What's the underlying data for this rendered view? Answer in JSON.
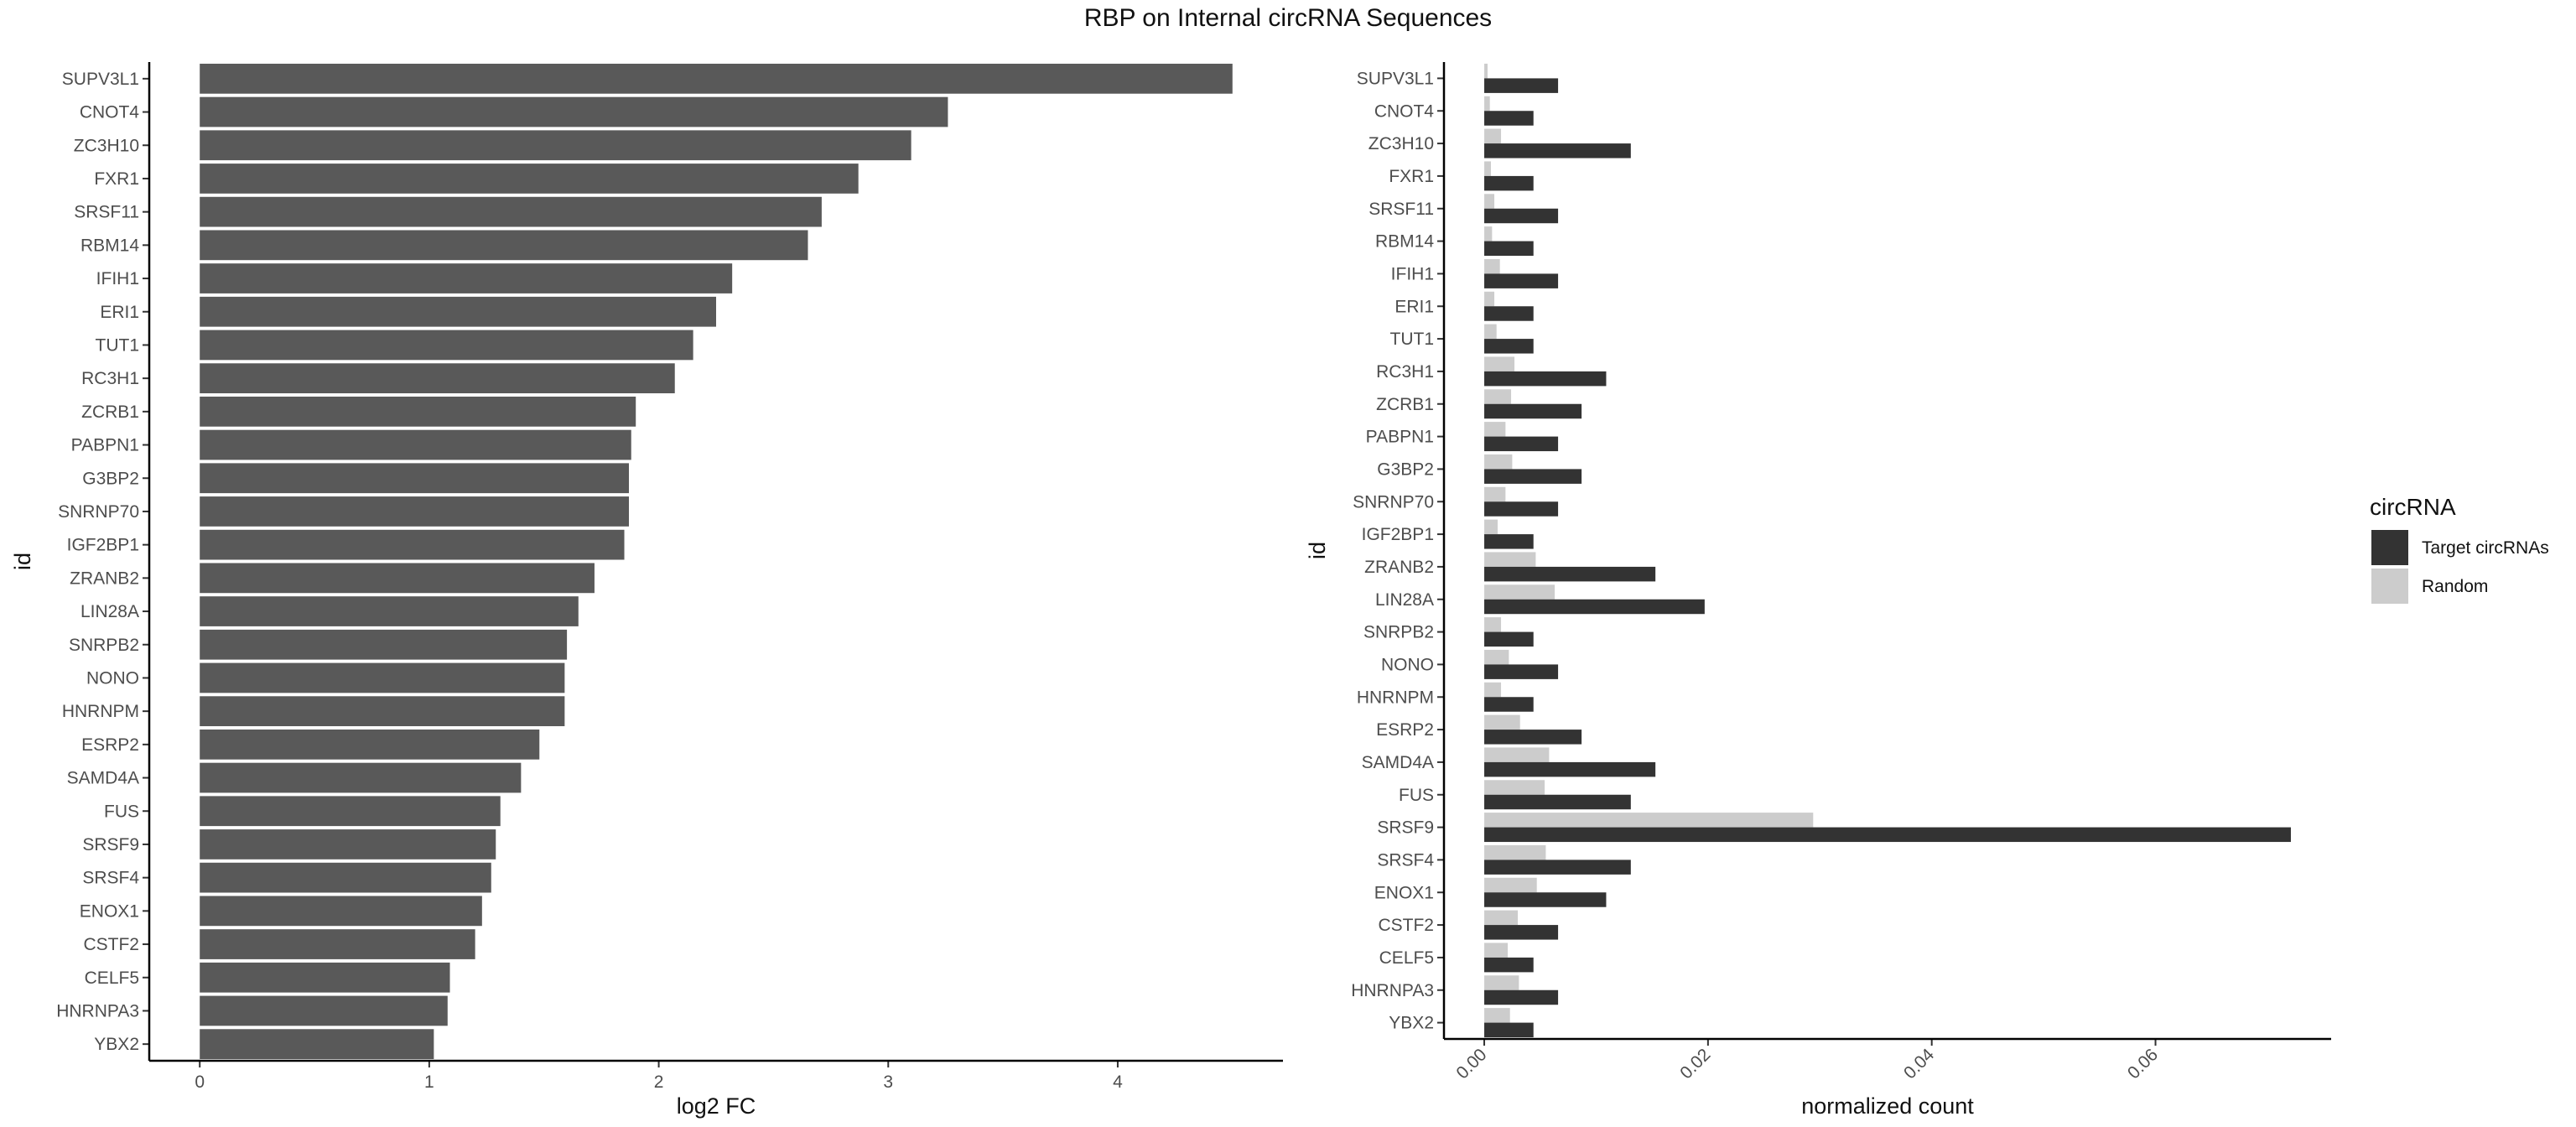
{
  "title": "RBP on Internal circRNA Sequences",
  "colors": {
    "left_bar": "#595959",
    "target": "#333333",
    "random": "#cccccc",
    "axis": "#000000",
    "tick_text": "#4d4d4d"
  },
  "chart_data": [
    {
      "type": "bar",
      "orientation": "horizontal",
      "categories": [
        "SUPV3L1",
        "CNOT4",
        "ZC3H10",
        "FXR1",
        "SRSF11",
        "RBM14",
        "IFIH1",
        "ERI1",
        "TUT1",
        "RC3H1",
        "ZCRB1",
        "PABPN1",
        "G3BP2",
        "SNRNP70",
        "IGF2BP1",
        "ZRANB2",
        "LIN28A",
        "SNRPB2",
        "NONO",
        "HNRNPM",
        "ESRP2",
        "SAMD4A",
        "FUS",
        "SRSF9",
        "SRSF4",
        "ENOX1",
        "CSTF2",
        "CELF5",
        "HNRNPA3",
        "YBX2"
      ],
      "values": [
        4.5,
        3.26,
        3.1,
        2.87,
        2.71,
        2.65,
        2.32,
        2.25,
        2.15,
        2.07,
        1.9,
        1.88,
        1.87,
        1.87,
        1.85,
        1.72,
        1.65,
        1.6,
        1.59,
        1.59,
        1.48,
        1.4,
        1.31,
        1.29,
        1.27,
        1.23,
        1.2,
        1.09,
        1.08,
        1.02
      ],
      "xlabel": "log2 FC",
      "ylabel": "id",
      "xticks": [
        0,
        1,
        2,
        3,
        4
      ],
      "xlim": [
        -0.22,
        4.72
      ],
      "grid": false
    },
    {
      "type": "bar",
      "orientation": "horizontal",
      "grouped": true,
      "categories": [
        "SUPV3L1",
        "CNOT4",
        "ZC3H10",
        "FXR1",
        "SRSF11",
        "RBM14",
        "IFIH1",
        "ERI1",
        "TUT1",
        "RC3H1",
        "ZCRB1",
        "PABPN1",
        "G3BP2",
        "SNRNP70",
        "IGF2BP1",
        "ZRANB2",
        "LIN28A",
        "SNRPB2",
        "NONO",
        "HNRNPM",
        "ESRP2",
        "SAMD4A",
        "FUS",
        "SRSF9",
        "SRSF4",
        "ENOX1",
        "CSTF2",
        "CELF5",
        "HNRNPA3",
        "YBX2"
      ],
      "series": [
        {
          "name": "Target circRNAs",
          "values": [
            0.0066,
            0.0044,
            0.0131,
            0.0044,
            0.0066,
            0.0044,
            0.0066,
            0.0044,
            0.0044,
            0.0109,
            0.0087,
            0.0066,
            0.0087,
            0.0066,
            0.0044,
            0.0153,
            0.0197,
            0.0044,
            0.0066,
            0.0044,
            0.0087,
            0.0153,
            0.0131,
            0.0721,
            0.0131,
            0.0109,
            0.0066,
            0.0044,
            0.0066,
            0.0044
          ]
        },
        {
          "name": "Random",
          "values": [
            0.0003,
            0.0005,
            0.0015,
            0.0006,
            0.0009,
            0.0007,
            0.0014,
            0.0009,
            0.0011,
            0.0027,
            0.0024,
            0.0019,
            0.0025,
            0.0019,
            0.0012,
            0.0046,
            0.0063,
            0.0015,
            0.0022,
            0.0015,
            0.0032,
            0.0058,
            0.0054,
            0.0294,
            0.0055,
            0.0047,
            0.003,
            0.0021,
            0.0031,
            0.0023
          ]
        }
      ],
      "xlabel": "normalized count",
      "ylabel": "id",
      "xticks": [
        0.0,
        0.02,
        0.04,
        0.06
      ],
      "xtick_labels": [
        "0.00",
        "0.02",
        "0.04",
        "0.06"
      ],
      "xlim": [
        -0.0036,
        0.0757
      ],
      "legend": {
        "title": "circRNA",
        "position": "right"
      },
      "grid": false
    }
  ]
}
